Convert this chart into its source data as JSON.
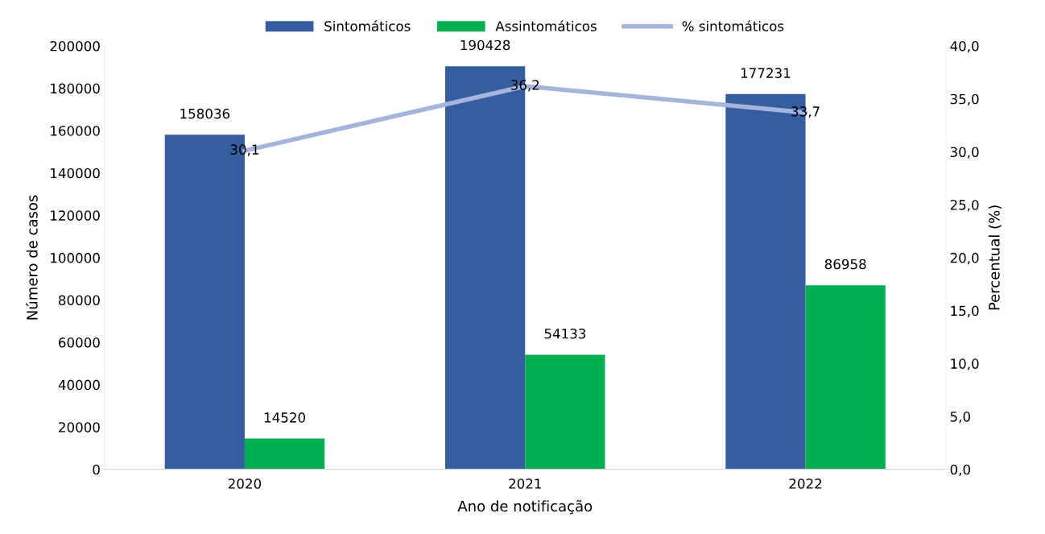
{
  "chart_data": {
    "type": "bar",
    "xlabel": "Ano de notificação",
    "ylabel": "Número de casos",
    "y2label": "Percentual (%)",
    "categories": [
      "2020",
      "2021",
      "2022"
    ],
    "series": [
      {
        "name": "Sintomáticos",
        "color": "#355ea0",
        "values": [
          158036,
          190428,
          177231
        ],
        "value_labels": [
          "158036",
          "190428",
          "177231"
        ]
      },
      {
        "name": "Assintomáticos",
        "color": "#00b050",
        "values": [
          14520,
          54133,
          86958
        ],
        "value_labels": [
          "14520",
          "54133",
          "86958"
        ]
      },
      {
        "name": "% sintomáticos",
        "type": "line",
        "axis": "y2",
        "color": "#a5b4dc",
        "values": [
          30.1,
          36.2,
          33.7
        ],
        "value_labels": [
          "30,1",
          "36,2",
          "33,7"
        ]
      }
    ],
    "ylim": [
      0,
      200000
    ],
    "yticks": [
      0,
      20000,
      40000,
      60000,
      80000,
      100000,
      120000,
      140000,
      160000,
      180000,
      200000
    ],
    "y2lim": [
      0,
      40
    ],
    "y2ticks": [
      {
        "value": 0,
        "label": "0,0"
      },
      {
        "value": 5,
        "label": "5,0"
      },
      {
        "value": 10,
        "label": "10,0"
      },
      {
        "value": 15,
        "label": "15,0"
      },
      {
        "value": 20,
        "label": "20,0"
      },
      {
        "value": 25,
        "label": "25,0"
      },
      {
        "value": 30,
        "label": "30,0"
      },
      {
        "value": 35,
        "label": "35,0"
      },
      {
        "value": 40,
        "label": "40,0"
      }
    ],
    "legend": "top",
    "grid": false
  }
}
